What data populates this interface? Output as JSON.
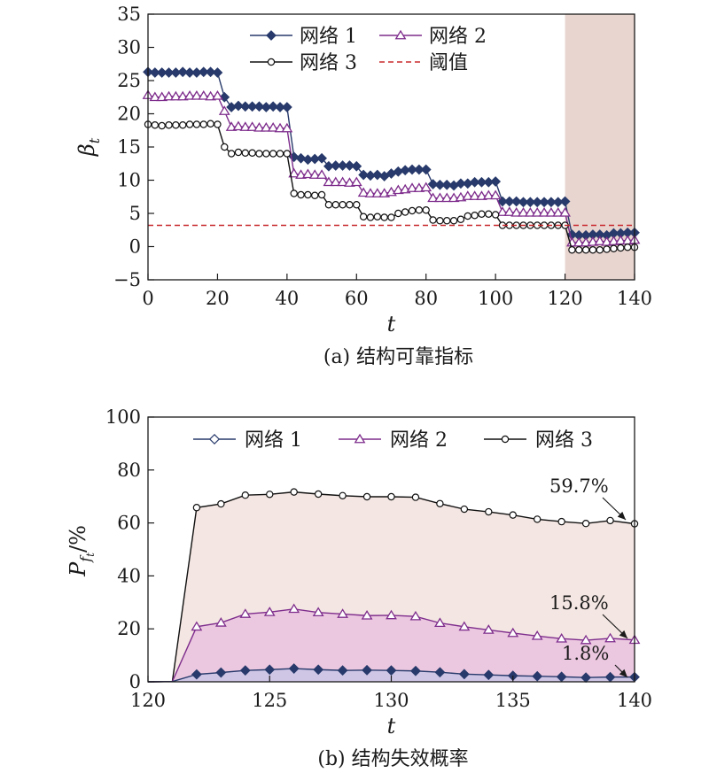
{
  "chart_data": [
    {
      "type": "line",
      "caption": "(a) 结构可靠指标",
      "xlabel": "t",
      "ylabel": "β_t",
      "ylabel_main": "β",
      "ylabel_sub": "t",
      "xlim": [
        0,
        140
      ],
      "ylim": [
        -5,
        35
      ],
      "xticks": [
        0,
        20,
        40,
        60,
        80,
        100,
        120,
        140
      ],
      "yticks": [
        -5,
        0,
        5,
        10,
        15,
        20,
        25,
        30,
        35
      ],
      "legend_position": "top",
      "shaded_region_x": [
        120,
        140
      ],
      "colors": {
        "series1": "#283a6b",
        "series2": "#7e2d8c",
        "series3": "#111111",
        "threshold": "#c8282c",
        "shade": "#e8d5d0"
      },
      "series": [
        {
          "name": "网络 1",
          "marker": "diamond",
          "x": [
            0,
            2,
            4,
            6,
            8,
            10,
            12,
            14,
            16,
            18,
            20,
            22,
            24,
            26,
            28,
            30,
            32,
            34,
            36,
            38,
            40,
            42,
            44,
            46,
            48,
            50,
            52,
            54,
            56,
            58,
            60,
            62,
            64,
            66,
            68,
            70,
            72,
            74,
            76,
            78,
            80,
            82,
            84,
            86,
            88,
            90,
            92,
            94,
            96,
            98,
            100,
            102,
            104,
            106,
            108,
            110,
            112,
            114,
            116,
            118,
            120,
            122,
            124,
            126,
            128,
            130,
            132,
            134,
            136,
            138,
            140
          ],
          "y": [
            26.3,
            26.2,
            26.2,
            26.2,
            26.2,
            26.3,
            26.2,
            26.2,
            26.3,
            26.3,
            26.2,
            22.5,
            21.0,
            21.2,
            21.1,
            21.1,
            21.1,
            21.0,
            21.1,
            21.0,
            21.0,
            13.5,
            13.3,
            13.1,
            13.2,
            13.3,
            12.1,
            12.2,
            12.2,
            12.2,
            12.1,
            10.8,
            10.7,
            10.8,
            10.6,
            11.0,
            11.3,
            11.5,
            11.6,
            11.6,
            11.6,
            9.4,
            9.3,
            9.3,
            9.2,
            9.5,
            9.5,
            9.7,
            9.7,
            9.7,
            9.8,
            6.8,
            6.8,
            6.8,
            6.7,
            6.7,
            6.7,
            6.7,
            6.7,
            6.7,
            6.8,
            1.8,
            1.7,
            1.7,
            1.8,
            1.8,
            1.7,
            2.0,
            2.0,
            2.1,
            2.1
          ]
        },
        {
          "name": "网络 2",
          "marker": "triangle",
          "x": [
            0,
            2,
            4,
            6,
            8,
            10,
            12,
            14,
            16,
            18,
            20,
            22,
            24,
            26,
            28,
            30,
            32,
            34,
            36,
            38,
            40,
            42,
            44,
            46,
            48,
            50,
            52,
            54,
            56,
            58,
            60,
            62,
            64,
            66,
            68,
            70,
            72,
            74,
            76,
            78,
            80,
            82,
            84,
            86,
            88,
            90,
            92,
            94,
            96,
            98,
            100,
            102,
            104,
            106,
            108,
            110,
            112,
            114,
            116,
            118,
            120,
            122,
            124,
            126,
            128,
            130,
            132,
            134,
            136,
            138,
            140
          ],
          "y": [
            22.8,
            22.5,
            22.5,
            22.6,
            22.6,
            22.6,
            22.7,
            22.7,
            22.7,
            22.6,
            22.7,
            20.4,
            18.0,
            18.1,
            18.0,
            18.0,
            17.9,
            17.9,
            17.9,
            17.8,
            17.8,
            11.0,
            10.8,
            10.9,
            10.8,
            10.8,
            9.7,
            9.7,
            9.7,
            9.6,
            9.7,
            8.1,
            8.0,
            8.0,
            8.0,
            8.2,
            8.5,
            8.6,
            8.8,
            8.8,
            8.9,
            7.3,
            7.3,
            7.3,
            7.3,
            7.4,
            7.6,
            7.6,
            7.6,
            7.7,
            7.7,
            5.2,
            5.2,
            5.1,
            5.1,
            5.1,
            5.1,
            5.1,
            5.1,
            5.1,
            5.1,
            0.6,
            0.6,
            0.6,
            0.7,
            0.8,
            0.7,
            0.8,
            0.9,
            0.9,
            1.0
          ]
        },
        {
          "name": "网络 3",
          "marker": "circle",
          "x": [
            0,
            2,
            4,
            6,
            8,
            10,
            12,
            14,
            16,
            18,
            20,
            22,
            24,
            26,
            28,
            30,
            32,
            34,
            36,
            38,
            40,
            42,
            44,
            46,
            48,
            50,
            52,
            54,
            56,
            58,
            60,
            62,
            64,
            66,
            68,
            70,
            72,
            74,
            76,
            78,
            80,
            82,
            84,
            86,
            88,
            90,
            92,
            94,
            96,
            98,
            100,
            102,
            104,
            106,
            108,
            110,
            112,
            114,
            116,
            118,
            120,
            122,
            124,
            126,
            128,
            130,
            132,
            134,
            136,
            138,
            140
          ],
          "y": [
            18.4,
            18.3,
            18.2,
            18.3,
            18.3,
            18.3,
            18.4,
            18.4,
            18.4,
            18.5,
            18.4,
            15.0,
            14.0,
            14.2,
            14.1,
            14.1,
            14.0,
            14.0,
            14.0,
            14.0,
            14.0,
            8.0,
            7.8,
            7.8,
            7.7,
            7.8,
            6.3,
            6.3,
            6.3,
            6.3,
            6.3,
            4.5,
            4.4,
            4.5,
            4.4,
            4.4,
            5.0,
            5.2,
            5.4,
            5.5,
            5.5,
            4.0,
            3.9,
            3.9,
            3.9,
            4.1,
            4.6,
            4.7,
            4.9,
            4.9,
            4.8,
            3.2,
            3.2,
            3.2,
            3.2,
            3.2,
            3.2,
            3.2,
            3.2,
            3.2,
            3.2,
            -0.5,
            -0.5,
            -0.5,
            -0.5,
            -0.5,
            -0.4,
            -0.3,
            -0.2,
            -0.1,
            -0.1
          ]
        },
        {
          "name": "阈值",
          "style": "dashed",
          "x": [
            0,
            140
          ],
          "y": [
            3.2,
            3.2
          ]
        }
      ]
    },
    {
      "type": "area",
      "caption": "(b) 结构失效概率",
      "xlabel": "t",
      "ylabel": "P_{f_t}/%",
      "ylabel_main": "P",
      "ylabel_sub": "f",
      "ylabel_subsub": "t",
      "ylabel_unit": "/%",
      "xlim": [
        120,
        140
      ],
      "ylim": [
        0,
        100
      ],
      "xticks": [
        120,
        125,
        130,
        135,
        140
      ],
      "yticks": [
        0,
        20,
        40,
        60,
        80,
        100
      ],
      "legend_position": "top",
      "colors": {
        "series1": "#283a6b",
        "series2": "#7e2d8c",
        "series3": "#111111",
        "fill1": "#cfc6e6",
        "fill2": "#ecc8e0",
        "fill3": "#f4e6e2"
      },
      "series": [
        {
          "name": "网络 1",
          "marker": "diamond",
          "x": [
            121,
            122,
            123,
            124,
            125,
            126,
            127,
            128,
            129,
            130,
            131,
            132,
            133,
            134,
            135,
            136,
            137,
            138,
            139,
            140
          ],
          "y": [
            0.1,
            2.8,
            3.5,
            4.3,
            4.6,
            5.0,
            4.6,
            4.3,
            4.4,
            4.3,
            4.1,
            3.6,
            2.9,
            2.6,
            2.3,
            2.1,
            1.9,
            1.6,
            1.8,
            1.8
          ]
        },
        {
          "name": "网络 2",
          "marker": "triangle",
          "x": [
            121,
            122,
            123,
            124,
            125,
            126,
            127,
            128,
            129,
            130,
            131,
            132,
            133,
            134,
            135,
            136,
            137,
            138,
            139,
            140
          ],
          "y": [
            0.1,
            20.8,
            22.3,
            25.6,
            26.3,
            27.5,
            26.2,
            25.6,
            25.0,
            25.1,
            24.7,
            22.2,
            20.8,
            19.6,
            18.4,
            17.3,
            16.3,
            15.7,
            16.4,
            15.8
          ]
        },
        {
          "name": "网络 3",
          "marker": "circle",
          "x": [
            121,
            122,
            123,
            124,
            125,
            126,
            127,
            128,
            129,
            130,
            131,
            132,
            133,
            134,
            135,
            136,
            137,
            138,
            139,
            140
          ],
          "y": [
            0.1,
            65.8,
            67.2,
            70.5,
            70.8,
            71.7,
            70.9,
            70.3,
            69.9,
            69.9,
            69.7,
            67.3,
            65.2,
            64.2,
            63.0,
            61.4,
            60.5,
            59.8,
            60.9,
            59.7
          ]
        }
      ],
      "annotations": [
        {
          "text": "59.7%",
          "x": 140,
          "y": 59.7
        },
        {
          "text": "15.8%",
          "x": 140,
          "y": 15.8
        },
        {
          "text": "1.8%",
          "x": 140,
          "y": 1.8
        }
      ]
    }
  ]
}
